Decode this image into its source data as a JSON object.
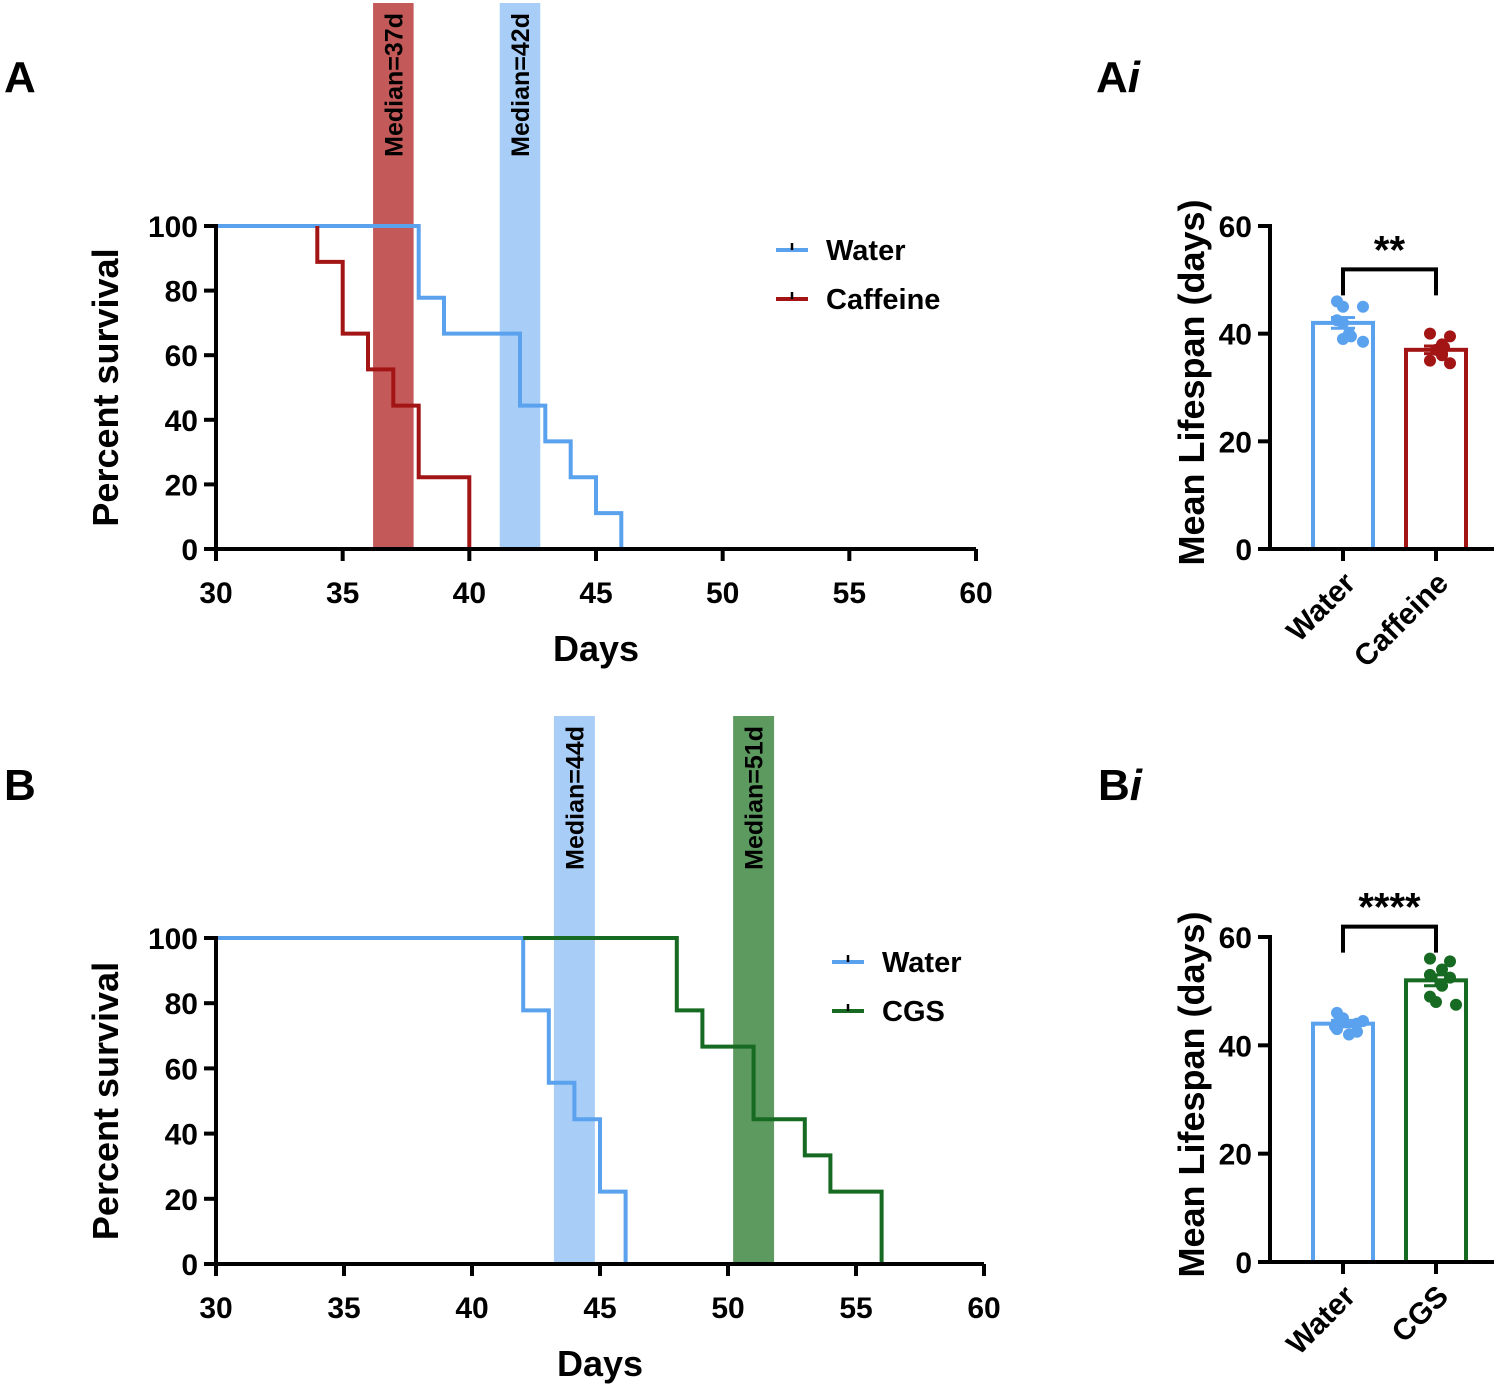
{
  "panels": {
    "A": "A",
    "Ai": "A",
    "B": "B",
    "Bi": "B",
    "italic_i": "i"
  },
  "colors": {
    "water": "#5aa1ee",
    "caffeine": "#a31515",
    "cgs": "#166a22",
    "median_caffeine": "#c45959",
    "median_water": "#a8cdf7",
    "median_cgs": "#5c9a60"
  },
  "chart_data": [
    {
      "id": "A",
      "type": "line",
      "subtype": "kaplan-meier",
      "xlabel": "Days",
      "ylabel": "Percent survival",
      "xlim": [
        30,
        60
      ],
      "ylim": [
        0,
        100
      ],
      "xticks": [
        30,
        35,
        40,
        45,
        50,
        55,
        60
      ],
      "yticks": [
        0,
        20,
        40,
        60,
        80,
        100
      ],
      "legend_position": "top-right",
      "series": [
        {
          "name": "Water",
          "color_key": "water",
          "x": [
            30,
            38,
            39,
            42,
            43,
            44,
            45,
            46,
            60
          ],
          "y": [
            100,
            77.8,
            66.7,
            44.4,
            33.3,
            22.2,
            11.1,
            0,
            0
          ]
        },
        {
          "name": "Caffeine",
          "color_key": "caffeine",
          "start_x": 34,
          "x": [
            34,
            35,
            36,
            37,
            38,
            40
          ],
          "y": [
            88.9,
            66.7,
            55.6,
            44.4,
            22.2,
            0
          ]
        }
      ],
      "medians": [
        {
          "label": "Median=37d",
          "center": 37,
          "width": 1.6,
          "color_key": "median_caffeine"
        },
        {
          "label": "Median=42d",
          "center": 42,
          "width": 1.6,
          "color_key": "median_water"
        }
      ]
    },
    {
      "id": "Ai",
      "type": "bar",
      "ylabel": "Mean Lifespan (days)",
      "ylim": [
        0,
        60
      ],
      "yticks": [
        0,
        20,
        40,
        60
      ],
      "categories": [
        "Water",
        "Caffeine"
      ],
      "values": [
        42,
        37
      ],
      "sem": [
        1,
        0.7
      ],
      "color_keys": [
        "water",
        "caffeine"
      ],
      "points": [
        [
          46,
          45,
          45,
          42.5,
          42,
          40,
          39.5,
          39,
          38.5
        ],
        [
          40,
          39.5,
          38,
          37.5,
          37,
          36,
          35,
          34.5
        ]
      ],
      "significance": "**"
    },
    {
      "id": "B",
      "type": "line",
      "subtype": "kaplan-meier",
      "xlabel": "Days",
      "ylabel": "Percent survival",
      "xlim": [
        30,
        60
      ],
      "ylim": [
        0,
        100
      ],
      "xticks": [
        30,
        35,
        40,
        45,
        50,
        55,
        60
      ],
      "yticks": [
        0,
        20,
        40,
        60,
        80,
        100
      ],
      "legend_position": "top-right",
      "series": [
        {
          "name": "Water",
          "color_key": "water",
          "x": [
            30,
            42,
            43,
            44,
            45,
            46
          ],
          "y": [
            100,
            77.8,
            55.6,
            44.4,
            22.2,
            0
          ]
        },
        {
          "name": "CGS",
          "color_key": "cgs",
          "start_x": 42,
          "x": [
            42,
            48,
            49,
            51,
            53,
            54,
            56
          ],
          "y": [
            100,
            77.8,
            66.7,
            44.4,
            33.3,
            22.2,
            0
          ]
        }
      ],
      "medians": [
        {
          "label": "Median=44d",
          "center": 44,
          "width": 1.6,
          "color_key": "median_water"
        },
        {
          "label": "Median=51d",
          "center": 51,
          "width": 1.6,
          "color_key": "median_cgs"
        }
      ]
    },
    {
      "id": "Bi",
      "type": "bar",
      "ylabel": "Mean Lifespan (days)",
      "ylim": [
        0,
        60
      ],
      "yticks": [
        0,
        20,
        40,
        60
      ],
      "categories": [
        "Water",
        "CGS"
      ],
      "values": [
        44,
        52
      ],
      "sem": [
        0.6,
        1
      ],
      "color_keys": [
        "water",
        "cgs"
      ],
      "points": [
        [
          46,
          45,
          44.5,
          44,
          44,
          43.5,
          43,
          42.5,
          42
        ],
        [
          56,
          55.5,
          54,
          53,
          52.5,
          51,
          49,
          48,
          47.5
        ]
      ],
      "significance": "****"
    }
  ]
}
